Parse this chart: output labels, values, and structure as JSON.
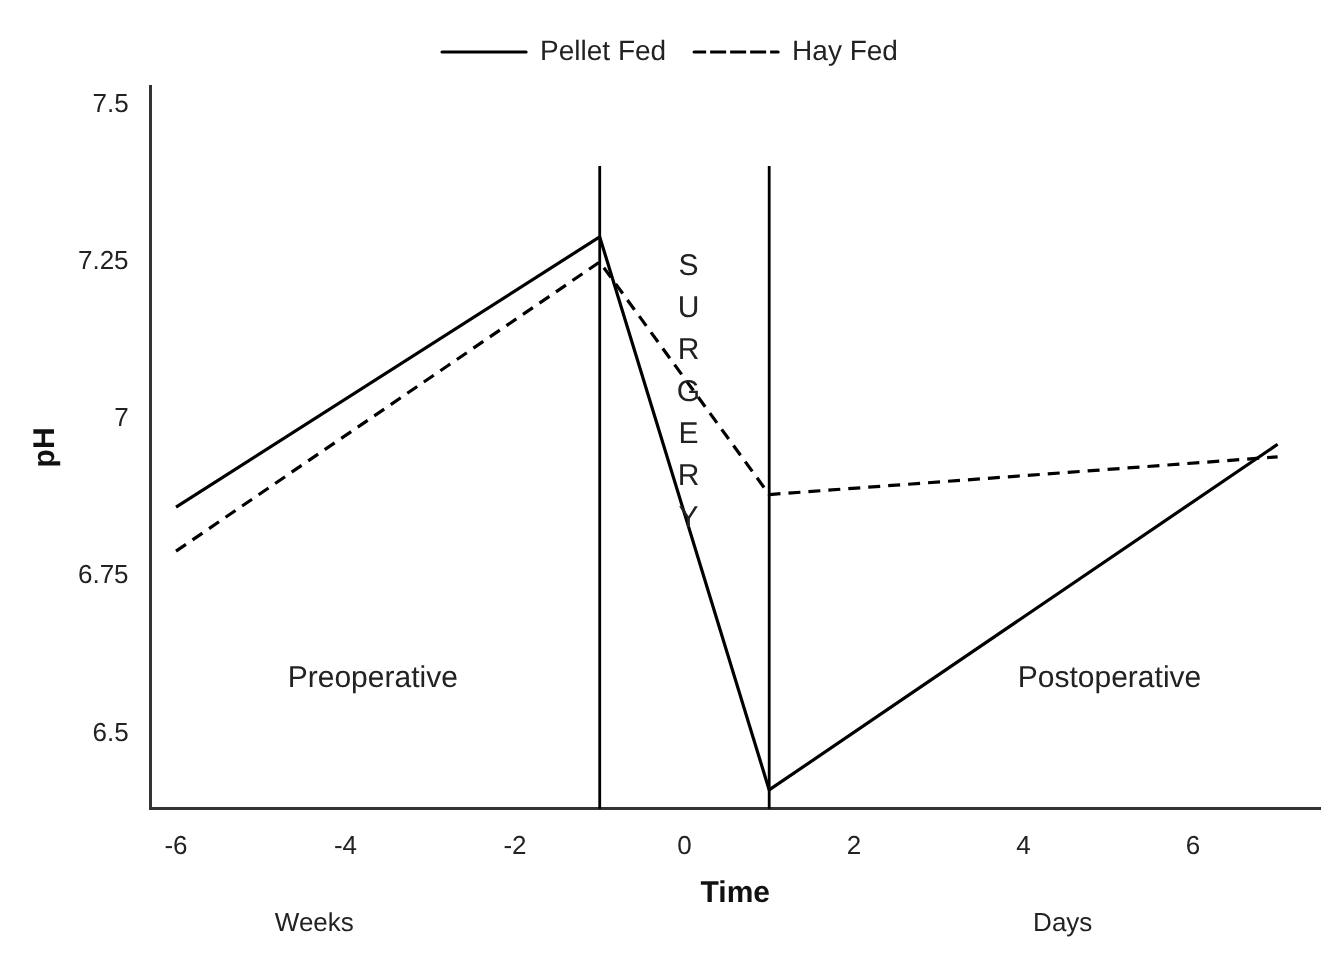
{
  "chart_data": {
    "type": "line",
    "xlabel": "Time",
    "ylabel": "pH",
    "xlim": [
      -6.3,
      7.5
    ],
    "xticks": [
      -6,
      -4,
      -2,
      0,
      2,
      4,
      6
    ],
    "ylim": [
      6.38,
      7.53
    ],
    "yticks": [
      6.5,
      6.75,
      7,
      7.25,
      7.5
    ],
    "series": [
      {
        "name": "Pellet Fed",
        "color": "#000000",
        "line_style": "solid",
        "x": [
          -6,
          -1,
          1,
          7
        ],
        "values": [
          6.86,
          7.29,
          6.41,
          6.96
        ]
      },
      {
        "name": "Hay Fed",
        "color": "#000000",
        "line_style": "dashed",
        "x": [
          -6,
          -1,
          1,
          7
        ],
        "values": [
          6.79,
          7.25,
          6.88,
          6.94
        ]
      }
    ],
    "ref_lines": [
      {
        "axis": "x",
        "value": -1,
        "color": "#000000"
      },
      {
        "axis": "x",
        "value": 1,
        "color": "#000000"
      }
    ],
    "annotations": [
      "Preoperative",
      "SURGERY",
      "Postoperative",
      "Weeks",
      "Days"
    ],
    "legend": "top",
    "grid": false,
    "marker": "none"
  }
}
